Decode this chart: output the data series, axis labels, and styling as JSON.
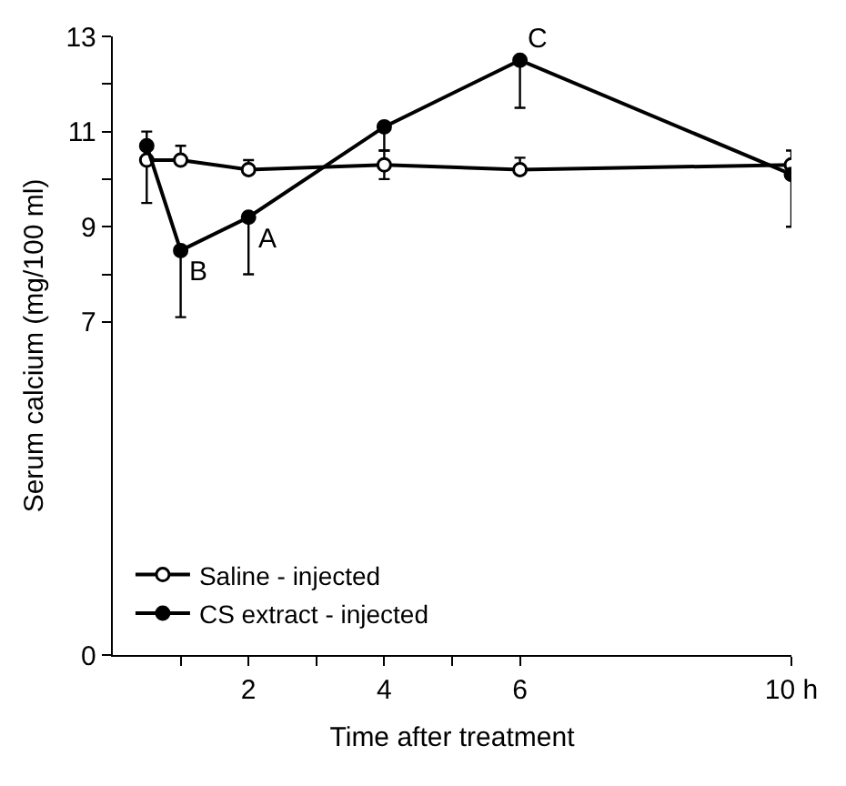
{
  "chart_data": {
    "type": "line",
    "xlabel": "Time after treatment",
    "ylabel": "Serum calcium (mg/100 ml)",
    "xlim": [
      0,
      10
    ],
    "xticks": [
      {
        "value": 1,
        "label": null
      },
      2,
      {
        "value": 3,
        "label": null
      },
      4,
      {
        "value": 5,
        "label": null
      },
      6,
      {
        "value": 10,
        "label": "10 h"
      }
    ],
    "ylim": [
      0,
      13
    ],
    "yticks": [
      0,
      7,
      {
        "value": 8,
        "label": null
      },
      9,
      {
        "value": 10,
        "label": null
      },
      11,
      {
        "value": 12,
        "label": null
      },
      13
    ],
    "x": [
      0.5,
      1,
      2,
      4,
      6,
      10
    ],
    "series": [
      {
        "name": "Saline - injected",
        "color": "#000000",
        "marker": "circle-open",
        "values": [
          10.4,
          10.4,
          10.2,
          10.3,
          10.2,
          10.3
        ],
        "errors": [
          [
            9.5,
            10.4
          ],
          [
            10.4,
            10.7
          ],
          [
            10.2,
            10.4
          ],
          [
            10.0,
            10.6
          ],
          [
            10.2,
            10.45
          ],
          [
            10.3,
            10.6
          ]
        ]
      },
      {
        "name": "CS extract - injected",
        "color": "#000000",
        "marker": "circle",
        "values": [
          10.7,
          8.5,
          9.2,
          11.1,
          12.5,
          10.1
        ],
        "errors": [
          [
            10.7,
            11.0
          ],
          [
            7.1,
            8.5
          ],
          [
            8.0,
            9.2
          ],
          [
            10.6,
            11.1
          ],
          [
            11.5,
            12.5
          ],
          [
            9.0,
            10.1
          ]
        ]
      }
    ],
    "annotations": [
      {
        "text": "B",
        "x": 1,
        "y": 8.5
      },
      {
        "text": "A",
        "x": 2,
        "y": 9.2
      },
      {
        "text": "C",
        "x": 6,
        "y": 12.5
      }
    ],
    "legend": "bottom left",
    "line_style": "solid"
  }
}
